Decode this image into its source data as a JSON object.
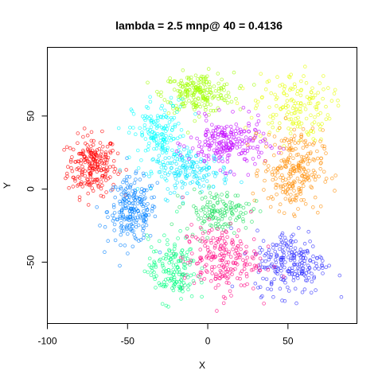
{
  "chart_data": {
    "type": "scatter",
    "title": "lambda = 2.5 mnp@ 40 = 0.4136",
    "xlabel": "X",
    "ylabel": "Y",
    "xlim": [
      -100,
      93
    ],
    "ylim": [
      -92,
      97
    ],
    "xticks": [
      -100,
      -50,
      0,
      50
    ],
    "yticks": [
      -50,
      0,
      50
    ],
    "xtick_labels": [
      "-100",
      "-50",
      "0",
      "50"
    ],
    "ytick_labels": [
      "-50",
      "0",
      "50"
    ],
    "grid": false,
    "legend": "none",
    "marker": "open-circle",
    "clusters": [
      {
        "color": "#ff0000",
        "center": [
          -72,
          16
        ],
        "spread": [
          9,
          12
        ],
        "count": 230
      },
      {
        "color": "#0080ff",
        "center": [
          -47,
          -15
        ],
        "spread": [
          9,
          13
        ],
        "count": 220
      },
      {
        "color": "#a0ff00",
        "center": [
          -6,
          66
        ],
        "spread": [
          13,
          8
        ],
        "count": 220
      },
      {
        "color": "#e6ff00",
        "center": [
          53,
          56
        ],
        "spread": [
          14,
          14
        ],
        "count": 160
      },
      {
        "color": "#00ffff",
        "center": [
          -30,
          37
        ],
        "spread": [
          10,
          14
        ],
        "count": 170
      },
      {
        "color": "#00e5ff",
        "center": [
          -10,
          12
        ],
        "spread": [
          14,
          8
        ],
        "count": 160
      },
      {
        "color": "#c000ff",
        "center": [
          12,
          31
        ],
        "spread": [
          14,
          10
        ],
        "count": 220
      },
      {
        "color": "#ff8c00",
        "center": [
          53,
          13
        ],
        "spread": [
          11,
          16
        ],
        "count": 250
      },
      {
        "color": "#3030ff",
        "center": [
          52,
          -50
        ],
        "spread": [
          13,
          13
        ],
        "count": 230
      },
      {
        "color": "#20e060",
        "center": [
          6,
          -15
        ],
        "spread": [
          12,
          8
        ],
        "count": 140
      },
      {
        "color": "#ff0080",
        "center": [
          8,
          -48
        ],
        "spread": [
          14,
          14
        ],
        "count": 220
      },
      {
        "color": "#00ff80",
        "center": [
          -22,
          -55
        ],
        "spread": [
          9,
          13
        ],
        "count": 160
      }
    ]
  }
}
